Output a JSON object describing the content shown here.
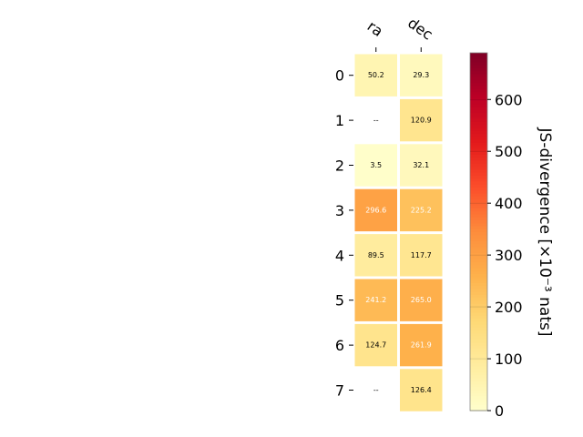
{
  "chart_data": {
    "type": "heatmap",
    "columns": [
      "ra",
      "dec"
    ],
    "rows": [
      "0",
      "1",
      "2",
      "3",
      "4",
      "5",
      "6",
      "7"
    ],
    "values": [
      [
        50.2,
        29.3
      ],
      [
        null,
        120.9
      ],
      [
        3.5,
        32.1
      ],
      [
        296.6,
        225.2
      ],
      [
        89.5,
        117.7
      ],
      [
        241.2,
        265.0
      ],
      [
        124.7,
        261.9
      ],
      [
        null,
        126.4
      ]
    ],
    "cell_labels": [
      [
        "50.2",
        "29.3"
      ],
      [
        "--",
        "120.9"
      ],
      [
        "3.5",
        "32.1"
      ],
      [
        "296.6",
        "225.2"
      ],
      [
        "89.5",
        "117.7"
      ],
      [
        "241.2",
        "265.0"
      ],
      [
        "124.7",
        "261.9"
      ],
      [
        "--",
        "126.4"
      ]
    ],
    "colorbar": {
      "label": "JS-divergence [×10⁻³ nats]",
      "range": [
        0,
        690
      ],
      "ticks": [
        "0",
        "100",
        "200",
        "300",
        "400",
        "500",
        "600"
      ],
      "colormap": "YlOrRd"
    },
    "colors": {
      "missing": "#ffffff",
      "low": "#ffffcc",
      "high": "#800026"
    }
  }
}
